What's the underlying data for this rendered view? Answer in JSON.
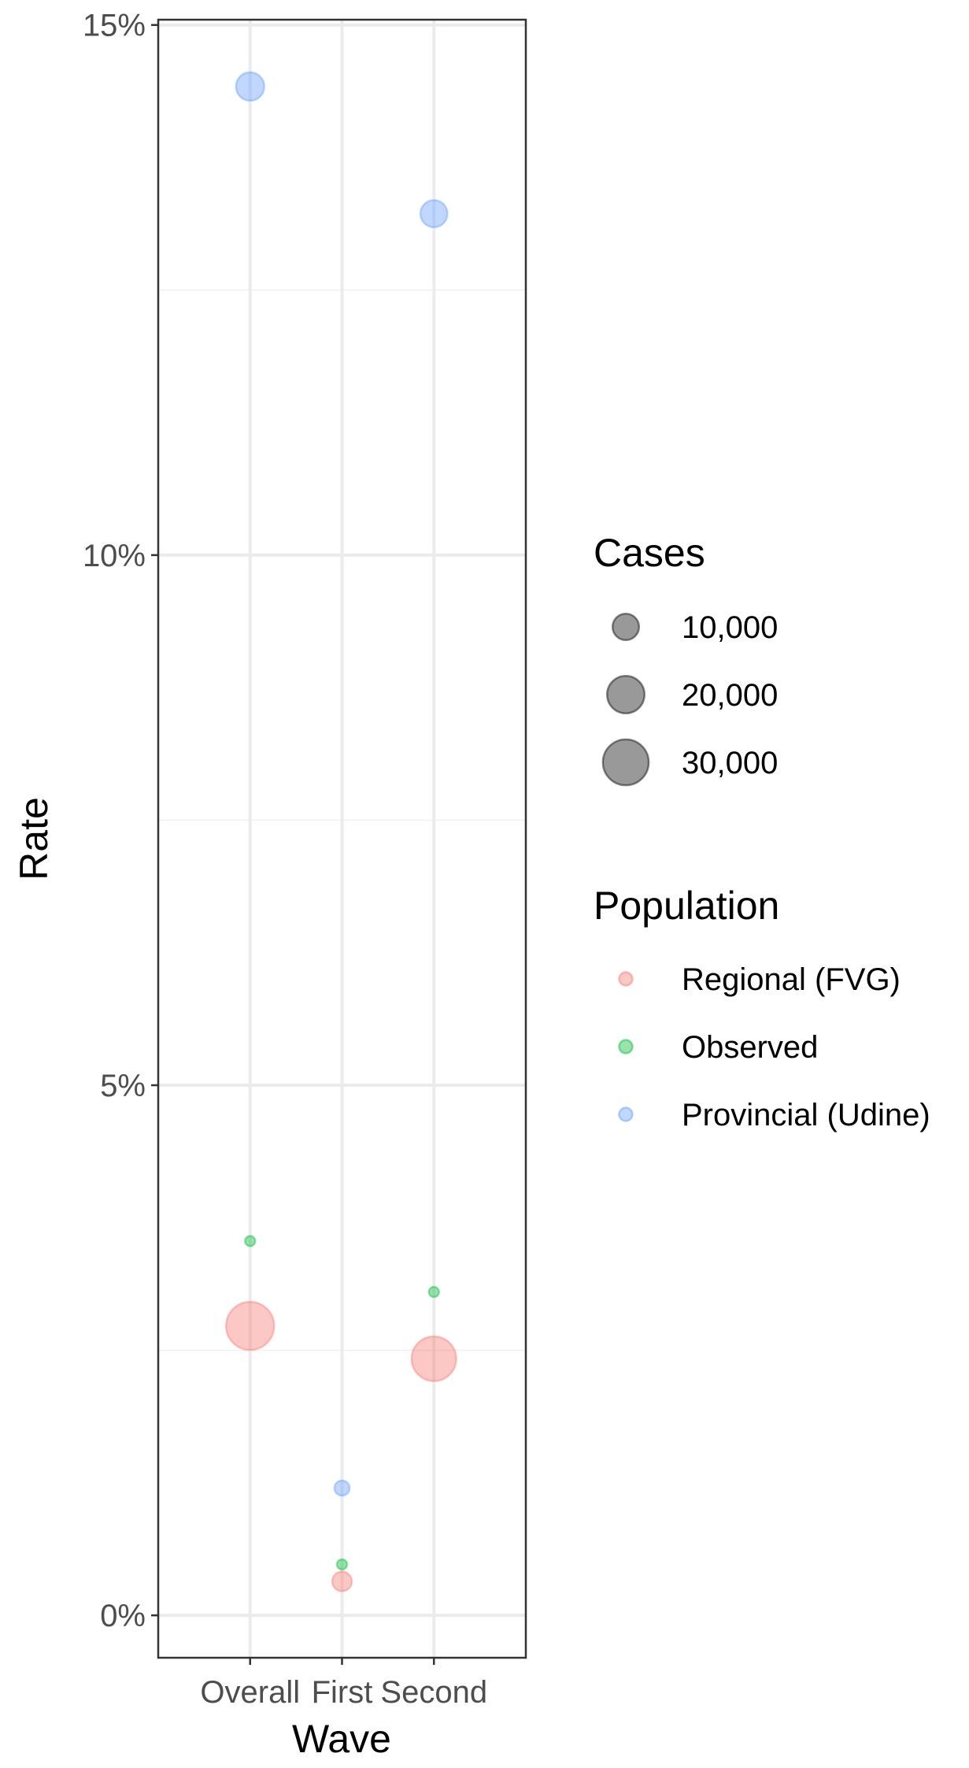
{
  "chart_data": {
    "type": "scatter",
    "title": "",
    "xlabel": "Wave",
    "ylabel": "Rate",
    "categories": [
      "Overall",
      "First",
      "Second"
    ],
    "ylim": [
      -0.004,
      0.1505
    ],
    "y_ticks": [
      {
        "value": 0,
        "label": "0%"
      },
      {
        "value": 0.05,
        "label": "5%"
      },
      {
        "value": 0.1,
        "label": "10%"
      },
      {
        "value": 0.15,
        "label": "15%"
      }
    ],
    "grid": true,
    "series": [
      {
        "name": "Regional (FVG)",
        "color": "#F8766D",
        "points": [
          {
            "x": "Overall",
            "rate": 0.0273,
            "cases": 33000
          },
          {
            "x": "First",
            "rate": 0.0032,
            "cases": 5500
          },
          {
            "x": "Second",
            "rate": 0.0242,
            "cases": 28500
          }
        ]
      },
      {
        "name": "Observed",
        "color": "#00BA38",
        "points": [
          {
            "x": "Overall",
            "rate": 0.0353,
            "cases": 900
          },
          {
            "x": "First",
            "rate": 0.0048,
            "cases": 500
          },
          {
            "x": "Second",
            "rate": 0.0305,
            "cases": 700
          }
        ]
      },
      {
        "name": "Provincial (Udine)",
        "color": "#619CFF",
        "points": [
          {
            "x": "Overall",
            "rate": 0.1442,
            "cases": 11500
          },
          {
            "x": "First",
            "rate": 0.012,
            "cases": 3300
          },
          {
            "x": "Second",
            "rate": 0.1322,
            "cases": 10500
          }
        ]
      }
    ],
    "legend": {
      "placement": "right",
      "size_title": "Cases",
      "size_entries": [
        {
          "label": "10,000",
          "cases": 10000
        },
        {
          "label": "20,000",
          "cases": 20000
        },
        {
          "label": "30,000",
          "cases": 30000
        }
      ],
      "color_title": "Population"
    }
  }
}
